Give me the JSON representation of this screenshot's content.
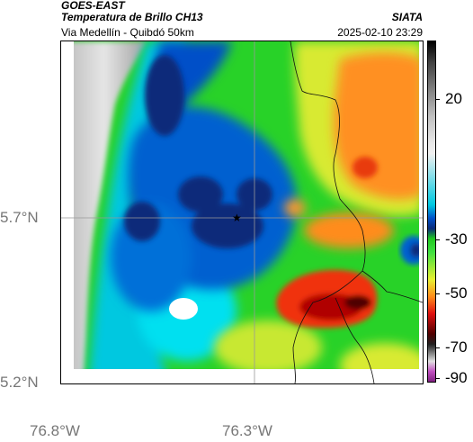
{
  "header": {
    "source": "GOES-EAST",
    "product": "Temperatura de Brillo CH13",
    "region": "Via Medellín - Quibdó 50km",
    "organization": "SIATA",
    "datetime": "2025-02-10 23:29"
  },
  "map": {
    "lat_ticks": [
      "5.7°N",
      "5.2°N"
    ],
    "lon_ticks": [
      "76.8°W",
      "76.3°W"
    ],
    "marker": "star-icon"
  },
  "colorbar": {
    "unit_hint": "°C",
    "ticks": [
      "20",
      "-30",
      "-50",
      "-70",
      "-90"
    ],
    "colors": {
      "gray_warm": "#d8d8d8",
      "cyan": "#00e5ee",
      "blue": "#0050c8",
      "navy": "#0a2a7a",
      "green": "#1fd21f",
      "yellow": "#e8f032",
      "orange": "#ff8c1a",
      "red": "#e01010",
      "darkred": "#500000",
      "magenta": "#c050c0"
    }
  }
}
